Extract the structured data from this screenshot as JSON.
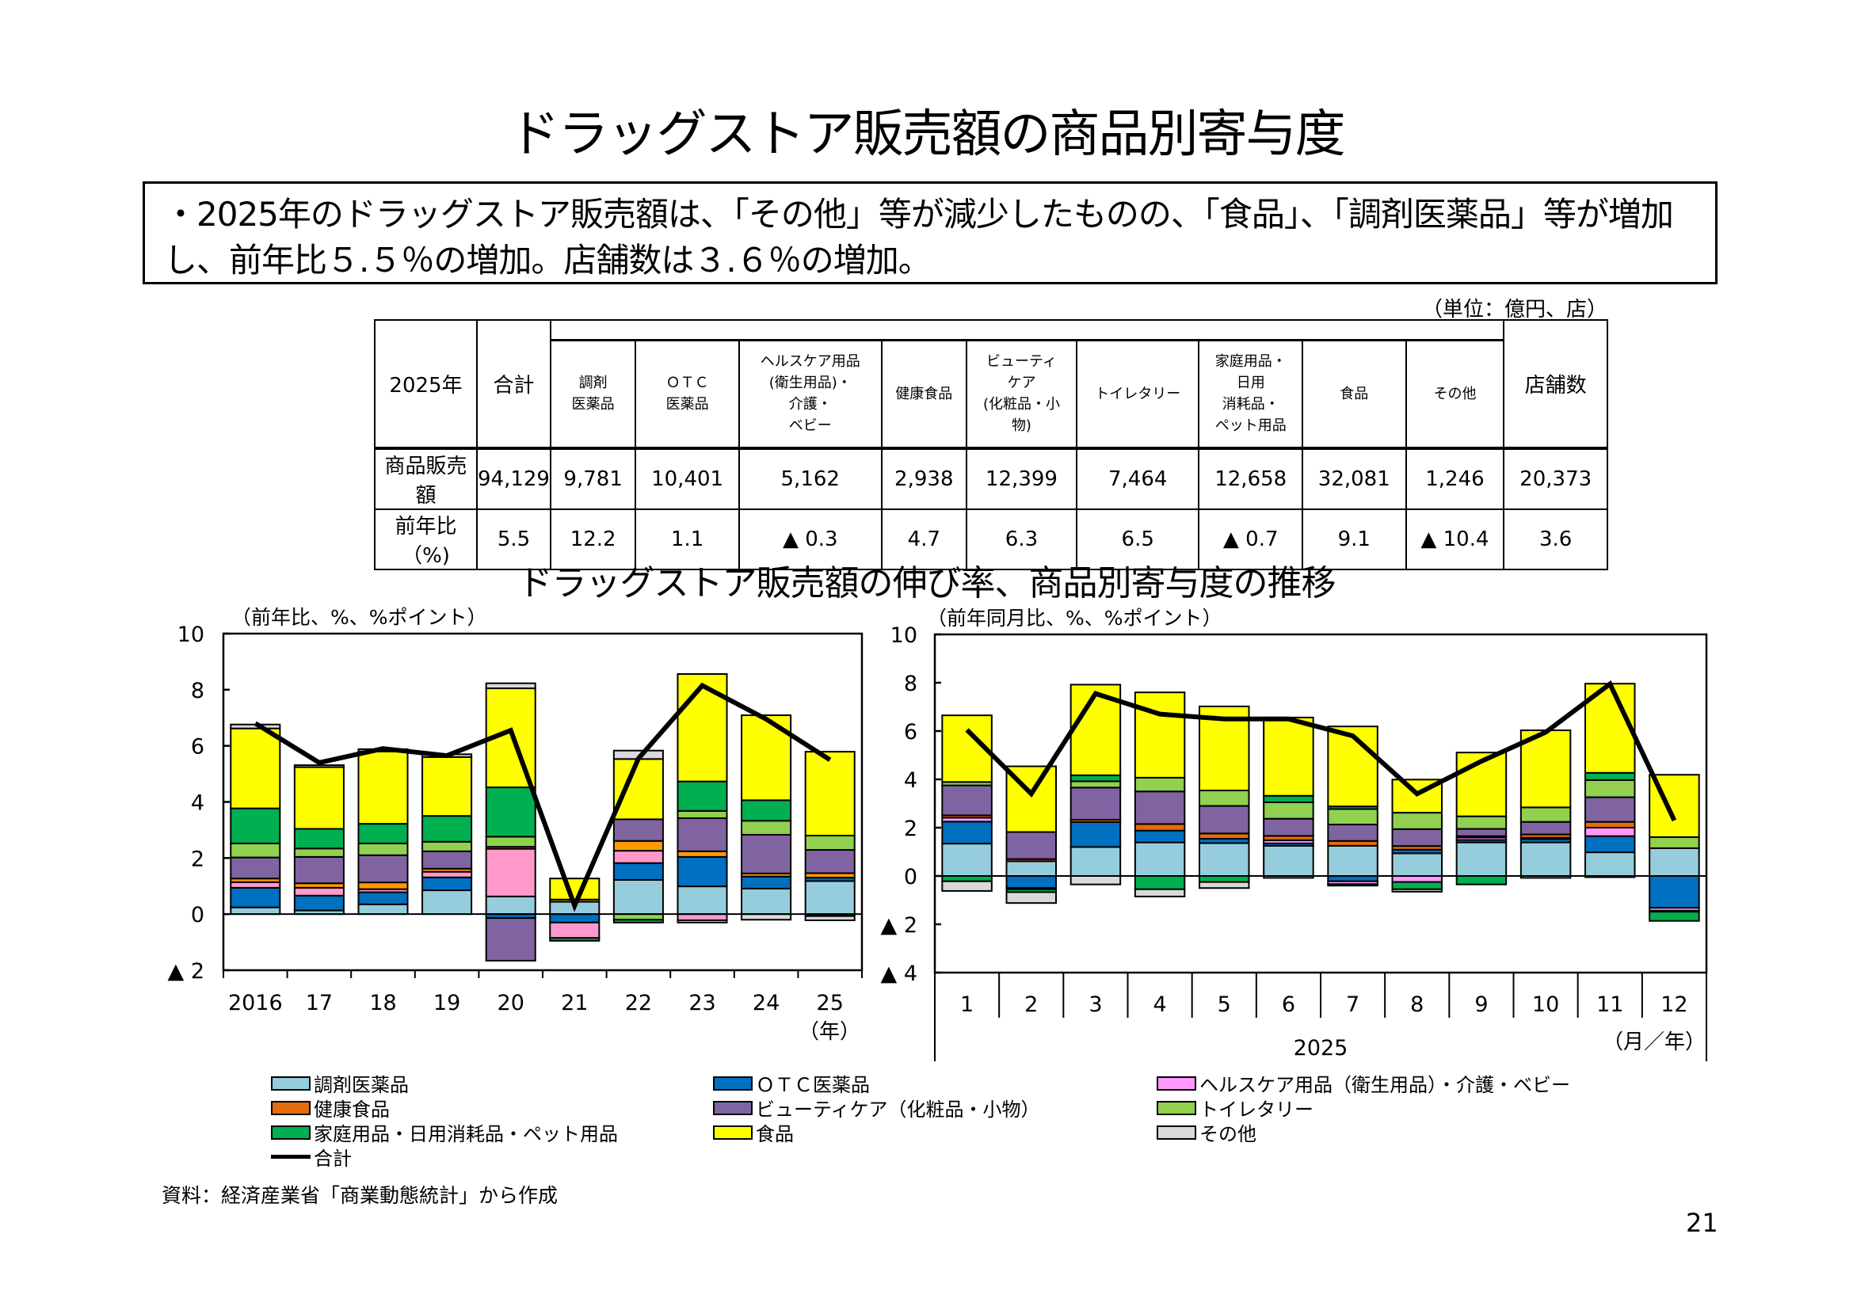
{
  "title": "ドラッグストア販売額の商品別寄与度",
  "summary": "・2025年のドラッグストア販売額は、「その他」等が減少したものの、「食品」、「調剤医薬品」等が増加し、前年比５.５％の増加。店舗数は３.６％の増加。",
  "unit": "（単位：億円、店）",
  "table": {
    "corner": "2025年",
    "headers": [
      "合計",
      "調剤\n医薬品",
      "ＯＴＣ\n医薬品",
      "ヘルスケア用品\n(衛生用品)・\n介護・\nベビー",
      "健康食品",
      "ビューティ\nケア\n(化粧品・小\n物)",
      "トイレタリー",
      "家庭用品・\n日用\n消耗品・\nペット用品",
      "食品",
      "その他",
      "店舗数"
    ],
    "rows": [
      {
        "label": "商品販売額",
        "values": [
          "94,129",
          "9,781",
          "10,401",
          "5,162",
          "2,938",
          "12,399",
          "7,464",
          "12,658",
          "32,081",
          "1,246",
          "20,373"
        ]
      },
      {
        "label": "前年比（%)",
        "values": [
          "5.5",
          "12.2",
          "1.1",
          "▲ 0.3",
          "4.7",
          "6.3",
          "6.5",
          "▲ 0.7",
          "9.1",
          "▲ 10.4",
          "3.6"
        ]
      }
    ]
  },
  "subtitle": "ドラッグストア販売額の伸び率、商品別寄与度の推移",
  "legend": [
    {
      "name": "調剤医薬品",
      "color": "#96CDDC"
    },
    {
      "name": "ＯＴＣ医薬品",
      "color": "#0070C0"
    },
    {
      "name": "ヘルスケア用品（衛生用品）・介護・ベビー",
      "color": "#FF99FF"
    },
    {
      "name": "健康食品",
      "color": "#E46C0A"
    },
    {
      "name": "ビューティケア（化粧品・小物）",
      "color": "#8064A2"
    },
    {
      "name": "トイレタリー",
      "color": "#92D050"
    },
    {
      "name": "家庭用品・日用消耗品・ペット用品",
      "color": "#00B050"
    },
    {
      "name": "食品",
      "color": "#FFFF00"
    },
    {
      "name": "その他",
      "color": "#D9D9D9"
    },
    {
      "name": "合計",
      "color": "#000000"
    }
  ],
  "chart_data": [
    {
      "type": "bar",
      "stacked": true,
      "ylabel": "（前年比、%、%ポイント）",
      "xunit": "（年）",
      "categories": [
        "2016",
        "17",
        "18",
        "19",
        "20",
        "21",
        "22",
        "23",
        "24",
        "25"
      ],
      "ylim": [
        -2,
        10
      ],
      "yticks": [
        {
          "v": 10,
          "label": "10"
        },
        {
          "v": 8,
          "label": "8"
        },
        {
          "v": 6,
          "label": "6"
        },
        {
          "v": 4,
          "label": "4"
        },
        {
          "v": 2,
          "label": "2"
        },
        {
          "v": 0,
          "label": "0"
        },
        {
          "v": -2,
          "label": "▲ 2"
        }
      ],
      "series": [
        {
          "name": "調剤医薬品",
          "values": [
            0.24,
            0.13,
            0.35,
            0.85,
            0.63,
            0.44,
            1.22,
            0.99,
            0.91,
            1.18
          ]
        },
        {
          "name": "ＯＴＣ医薬品",
          "values": [
            0.7,
            0.53,
            0.43,
            0.46,
            -0.14,
            -0.3,
            0.6,
            1.05,
            0.43,
            0.12
          ]
        },
        {
          "name": "ヘルスケア用品（衛生用品）・介護・ベビー",
          "values": [
            0.2,
            0.28,
            0.11,
            0.2,
            1.7,
            -0.55,
            0.44,
            -0.22,
            0,
            -0.02
          ]
        },
        {
          "name": "健康食品",
          "values": [
            0.13,
            0.16,
            0.24,
            0.11,
            0.07,
            0.08,
            0.35,
            0.2,
            0.11,
            0.16
          ]
        },
        {
          "name": "ビューティケア（化粧品・小物）",
          "values": [
            0.75,
            0.94,
            0.97,
            0.62,
            -1.52,
            0,
            0.77,
            1.18,
            1.38,
            0.83
          ]
        },
        {
          "name": "トイレタリー",
          "values": [
            0.5,
            0.3,
            0.42,
            0.34,
            0.36,
            0,
            -0.2,
            0.26,
            0.5,
            0.51
          ]
        },
        {
          "name": "家庭用品・日用消耗品・ペット用品",
          "values": [
            1.25,
            0.7,
            0.7,
            0.92,
            1.76,
            -0.1,
            -0.1,
            1.05,
            0.73,
            -0.05
          ]
        },
        {
          "name": "食品",
          "values": [
            2.85,
            2.2,
            2.58,
            2.1,
            3.53,
            0.75,
            2.15,
            3.83,
            3.03,
            2.99
          ]
        },
        {
          "name": "その他",
          "values": [
            0.14,
            0.07,
            0.08,
            0.1,
            0.18,
            0,
            0.3,
            -0.08,
            -0.2,
            -0.15
          ]
        }
      ],
      "line": {
        "name": "合計",
        "values": [
          6.8,
          5.4,
          5.9,
          5.65,
          6.55,
          0.3,
          5.55,
          8.15,
          6.95,
          5.5
        ]
      },
      "grid": false
    },
    {
      "type": "bar",
      "stacked": true,
      "ylabel": "（前年同月比、%、%ポイント）",
      "xunit": "（月／年）",
      "xgroup": "2025",
      "categories": [
        "1",
        "2",
        "3",
        "4",
        "5",
        "6",
        "7",
        "8",
        "9",
        "10",
        "11",
        "12"
      ],
      "ylim": [
        -4,
        10
      ],
      "yticks": [
        {
          "v": 10,
          "label": "10"
        },
        {
          "v": 8,
          "label": "8"
        },
        {
          "v": 6,
          "label": "6"
        },
        {
          "v": 4,
          "label": "4"
        },
        {
          "v": 2,
          "label": "2"
        },
        {
          "v": 0,
          "label": "0"
        },
        {
          "v": -2,
          "label": "▲ 2"
        },
        {
          "v": -4,
          "label": "▲ 4"
        }
      ],
      "series": [
        {
          "name": "調剤医薬品",
          "values": [
            1.34,
            0.61,
            1.2,
            1.39,
            1.36,
            1.25,
            1.25,
            0.94,
            1.39,
            1.39,
            0.98,
            1.15
          ]
        },
        {
          "name": "ＯＴＣ医薬品",
          "values": [
            0.91,
            -0.5,
            1.03,
            0.49,
            0.18,
            0.1,
            -0.22,
            0.15,
            0.1,
            0.14,
            0.67,
            -1.32
          ]
        },
        {
          "name": "ヘルスケア用品（衛生用品）・介護・ベビー",
          "values": [
            0.16,
            -0.05,
            0,
            0,
            0,
            0.13,
            -0.12,
            -0.25,
            0.1,
            0.05,
            0.35,
            -0.12
          ]
        },
        {
          "name": "健康食品",
          "values": [
            0.1,
            0.09,
            0.1,
            0.27,
            0.22,
            0.18,
            0.2,
            0.15,
            0.06,
            0.14,
            0.24,
            -0.04
          ]
        },
        {
          "name": "ビューティケア（化粧品・小物）",
          "values": [
            1.24,
            1.12,
            1.33,
            1.35,
            1.14,
            0.71,
            0.68,
            0.7,
            0.3,
            0.52,
            1.02,
            0
          ]
        },
        {
          "name": "トイレタリー",
          "values": [
            0.14,
            0,
            0.26,
            0.57,
            0.64,
            0.68,
            0.64,
            0.68,
            0.52,
            0.6,
            0.71,
            0.46
          ]
        },
        {
          "name": "家庭用品・日用消耗品・ペット用品",
          "values": [
            -0.22,
            -0.12,
            0.25,
            -0.55,
            -0.25,
            0.27,
            0.11,
            -0.3,
            -0.35,
            0,
            0.3,
            -0.38
          ]
        },
        {
          "name": "食品",
          "values": [
            2.76,
            2.72,
            3.75,
            3.53,
            3.48,
            3.24,
            3.31,
            1.37,
            2.64,
            3.19,
            3.69,
            2.58
          ]
        },
        {
          "name": "その他",
          "values": [
            -0.4,
            -0.45,
            -0.35,
            -0.3,
            -0.25,
            -0.08,
            -0.06,
            -0.1,
            0,
            -0.08,
            -0.05,
            0
          ]
        }
      ],
      "line": {
        "name": "合計",
        "values": [
          6.05,
          3.4,
          7.55,
          6.7,
          6.5,
          6.5,
          5.8,
          3.4,
          4.75,
          5.95,
          7.95,
          2.3
        ]
      },
      "grid": false
    }
  ],
  "source": "資料：経済産業省「商業動態統計」から作成",
  "page_number": "21"
}
